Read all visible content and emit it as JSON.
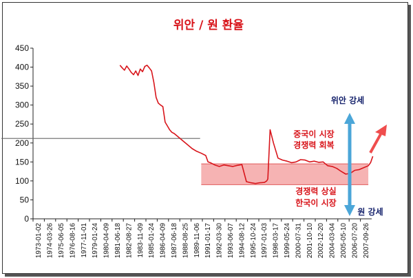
{
  "chart_data": {
    "type": "line",
    "title": "위안 / 원 환율",
    "xlabel": "",
    "ylabel": "",
    "ylim": [
      0,
      450
    ],
    "yticks": [
      0,
      50,
      100,
      150,
      200,
      250,
      300,
      350,
      400,
      450
    ],
    "grid": false,
    "x_categories": [
      "1973-01-02",
      "1974-03-26",
      "1975-06-05",
      "1976-08-16",
      "1977-11-01",
      "1979-01-24",
      "1980-04-09",
      "1981-06-18",
      "1982-08-27",
      "1983-11-09",
      "1985-01-24",
      "1986-04-09",
      "1987-06-18",
      "1988-08-25",
      "1989-11-06",
      "1991-01-17",
      "1992-03-30",
      "1993-06-07",
      "1994-08-12",
      "1995-10-24",
      "1997-01-03",
      "1998-03-17",
      "1999-05-24",
      "2000-07-31",
      "2001-10-10",
      "2002-12-20",
      "2004-03-04",
      "2005-05-10",
      "2006-07-20",
      "2007-09-26"
    ],
    "series": [
      {
        "color": "#d8141a",
        "x": [
          7.2,
          7.4,
          7.6,
          7.8,
          8.0,
          8.2,
          8.4,
          8.6,
          8.8,
          9.0,
          9.2,
          9.4,
          9.6,
          9.8,
          10.0,
          10.2,
          10.4,
          10.6,
          10.8,
          11.0,
          11.2,
          11.4,
          11.6,
          11.8,
          12.0,
          12.4,
          12.8,
          13.2,
          13.6,
          14.0,
          14.4,
          14.8,
          15.0,
          15.2,
          15.6,
          16.0,
          16.4,
          16.8,
          17.2,
          17.6,
          18.0,
          18.4,
          18.8,
          19.2,
          19.6,
          20.0,
          20.2,
          20.3,
          20.5,
          20.8,
          21.2,
          21.6,
          22.0,
          22.4,
          22.8,
          23.2,
          23.6,
          24.0,
          24.4,
          24.8,
          25.2,
          25.6,
          26.0,
          26.4,
          26.8,
          27.2,
          27.6,
          28.0,
          28.4,
          28.8,
          29.2,
          29.4,
          29.6
        ],
        "y": [
          405,
          398,
          392,
          403,
          395,
          386,
          380,
          390,
          378,
          395,
          388,
          402,
          405,
          398,
          390,
          360,
          320,
          305,
          300,
          296,
          255,
          245,
          235,
          228,
          225,
          215,
          205,
          195,
          185,
          178,
          173,
          167,
          150,
          148,
          142,
          138,
          142,
          140,
          138,
          141,
          143,
          98,
          95,
          93,
          95,
          96,
          100,
          105,
          235,
          200,
          160,
          155,
          152,
          148,
          150,
          156,
          155,
          150,
          152,
          149,
          150,
          140,
          138,
          133,
          125,
          118,
          120,
          128,
          130,
          135,
          140,
          148,
          165
        ]
      }
    ],
    "annotations": {
      "yuan_strong": "위안 강세",
      "won_strong": "원 강세",
      "upper_note_line1": "중국이 시장",
      "upper_note_line2": "경쟁력 회복",
      "lower_note_line1": "경쟁력 상실",
      "lower_note_line2": "한국이 시장"
    },
    "colors": {
      "line": "#d8141a",
      "band": "#f4a0a0",
      "band_edge": "#e05a5a",
      "axis_arrow": "#4ba6d8",
      "trend_arrow": "#ef4d4d",
      "title": "#d8141a",
      "annotation_red": "#d8141a",
      "annotation_navy": "#14216b",
      "reference_line": "#666666"
    },
    "band": {
      "y_low": 90,
      "y_high": 145,
      "x_start": 14.4,
      "x_end": 29.2
    },
    "reference_line_value": 212
  }
}
